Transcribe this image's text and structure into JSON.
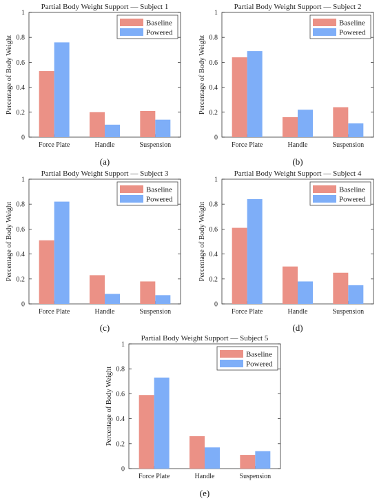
{
  "colors": {
    "baseline": "#eb9186",
    "powered": "#7eaef8",
    "axis": "#333333",
    "box": "#444444"
  },
  "chart_data": [
    {
      "type": "bar",
      "title": "Partial Body Weight Support — Subject 1",
      "ylabel": "Percentage of Body Weight",
      "categories": [
        "Force Plate",
        "Handle",
        "Suspension"
      ],
      "ylim": [
        0,
        1
      ],
      "yticks": [
        "0",
        "0.2",
        "0.4",
        "0.6",
        "0.8",
        "1"
      ],
      "legend": "top-right",
      "series": [
        {
          "name": "Baseline",
          "values": [
            0.53,
            0.2,
            0.21
          ]
        },
        {
          "name": "Powered",
          "values": [
            0.76,
            0.1,
            0.14
          ]
        }
      ],
      "panel_label": "(a)"
    },
    {
      "type": "bar",
      "title": "Partial Body Weight Support — Subject 2",
      "ylabel": "Percentage of Body Weight",
      "categories": [
        "Force Plate",
        "Handle",
        "Suspension"
      ],
      "ylim": [
        0,
        1
      ],
      "yticks": [
        "0",
        "0.2",
        "0.4",
        "0.6",
        "0.8",
        "1"
      ],
      "legend": "top-right",
      "series": [
        {
          "name": "Baseline",
          "values": [
            0.64,
            0.16,
            0.24
          ]
        },
        {
          "name": "Powered",
          "values": [
            0.69,
            0.22,
            0.11
          ]
        }
      ],
      "panel_label": "(b)"
    },
    {
      "type": "bar",
      "title": "Partial Body Weight Support — Subject 3",
      "ylabel": "Percentage of Body Weight",
      "categories": [
        "Force Plate",
        "Handle",
        "Suspension"
      ],
      "ylim": [
        0,
        1
      ],
      "yticks": [
        "0",
        "0.2",
        "0.4",
        "0.6",
        "0.8",
        "1"
      ],
      "legend": "top-right",
      "series": [
        {
          "name": "Baseline",
          "values": [
            0.51,
            0.23,
            0.18
          ]
        },
        {
          "name": "Powered",
          "values": [
            0.82,
            0.08,
            0.07
          ]
        }
      ],
      "panel_label": "(c)"
    },
    {
      "type": "bar",
      "title": "Partial Body Weight Support — Subject 4",
      "ylabel": "Percentage of Body Weight",
      "categories": [
        "Force Plate",
        "Handle",
        "Suspension"
      ],
      "ylim": [
        0,
        1
      ],
      "yticks": [
        "0",
        "0.2",
        "0.4",
        "0.6",
        "0.8",
        "1"
      ],
      "legend": "top-right",
      "series": [
        {
          "name": "Baseline",
          "values": [
            0.61,
            0.3,
            0.25
          ]
        },
        {
          "name": "Powered",
          "values": [
            0.84,
            0.18,
            0.15
          ]
        }
      ],
      "panel_label": "(d)"
    },
    {
      "type": "bar",
      "title": "Partial Body Weight Support — Subject 5",
      "ylabel": "Percentage of Body Weight",
      "categories": [
        "Force Plate",
        "Handle",
        "Suspension"
      ],
      "ylim": [
        0,
        1
      ],
      "yticks": [
        "0",
        "0.2",
        "0.4",
        "0.6",
        "0.8",
        "1"
      ],
      "legend": "top-right",
      "series": [
        {
          "name": "Baseline",
          "values": [
            0.59,
            0.26,
            0.11
          ]
        },
        {
          "name": "Powered",
          "values": [
            0.73,
            0.17,
            0.14
          ]
        }
      ],
      "panel_label": "(e)"
    }
  ]
}
